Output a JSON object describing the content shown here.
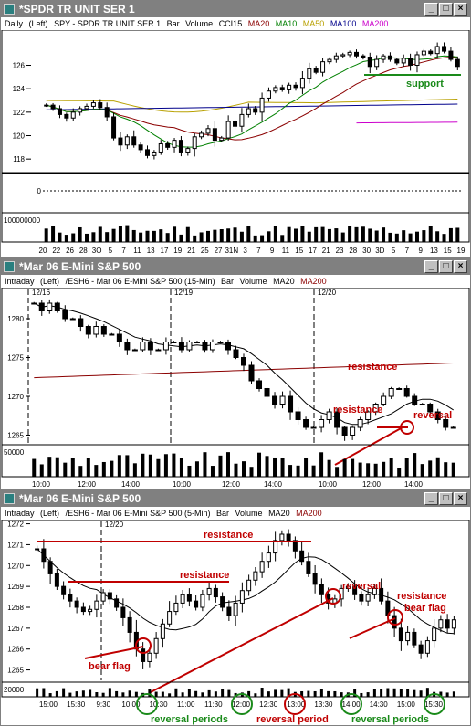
{
  "colors": {
    "up": "#ffffff",
    "down": "#000000",
    "ma20": "#8b0000",
    "ma10": "#008000",
    "ma50": "#b8a000",
    "ma100": "#00008b",
    "ma200": "#cc00cc",
    "annotation": "#c00000",
    "green_annotation": "#1a8a1a"
  },
  "windows": [
    {
      "title": "*SPDR TR UNIT SER 1",
      "legend": {
        "period": "Daily",
        "side": "(Left)",
        "symbol": "SPY - SPDR TR UNIT SER 1",
        "bar": "Bar",
        "volume": "Volume",
        "cci": "CCI15",
        "ma20": "MA20",
        "ma10": "MA10",
        "ma50": "MA50",
        "ma100": "MA100",
        "ma200": "MA200"
      },
      "price_ticks": [
        "126",
        "124",
        "122",
        "120",
        "118"
      ],
      "cci_ticks": [
        "0"
      ],
      "volume_ticks": [
        "100000000"
      ],
      "x_ticks": [
        "20",
        "22",
        "26",
        "28",
        "3O",
        "5",
        "7",
        "11",
        "13",
        "17",
        "19",
        "21",
        "25",
        "27",
        "31N",
        "3",
        "7",
        "9",
        "11",
        "15",
        "17",
        "21",
        "23",
        "28",
        "30",
        "3D",
        "5",
        "7",
        "9",
        "13",
        "15",
        "19"
      ],
      "annotations": {
        "support": "support"
      }
    },
    {
      "title": "*Mar 06 E-Mini S&P 500",
      "legend": {
        "period": "Intraday",
        "side": "(Left)",
        "symbol": "/ESH6 - Mar 06 E-Mini S&P 500 (15-Min)",
        "bar": "Bar",
        "volume": "Volume",
        "ma20": "MA20",
        "ma200": "MA200"
      },
      "price_ticks": [
        "1280",
        "1275",
        "1270",
        "1265"
      ],
      "volume_ticks": [
        "50000"
      ],
      "date_markers": [
        "12/16",
        "12/19",
        "12/20"
      ],
      "x_ticks": [
        "10:00",
        "12:00",
        "14:00",
        "10:00",
        "12:00",
        "14:00",
        "10:00",
        "12:00",
        "14:00"
      ],
      "annotations": {
        "resistance_upper": "resistance",
        "resistance_lower": "resistance",
        "reversal": "reversal"
      }
    },
    {
      "title": "*Mar 06 E-Mini S&P 500",
      "legend": {
        "period": "Intraday",
        "side": "(Left)",
        "symbol": "/ESH6 - Mar 06 E-Mini S&P 500 (5-Min)",
        "bar": "Bar",
        "volume": "Volume",
        "ma20": "MA20",
        "ma200": "MA200"
      },
      "price_ticks": [
        "1272",
        "1271",
        "1270",
        "1269",
        "1268",
        "1267",
        "1266",
        "1265"
      ],
      "volume_ticks": [
        "20000"
      ],
      "date_markers": [
        "12/20"
      ],
      "x_ticks": [
        "15:00",
        "15:30",
        "9:30",
        "10:00",
        "10:30",
        "11:00",
        "11:30",
        "12:00",
        "12:30",
        "13:00",
        "13:30",
        "14:00",
        "14:30",
        "15:00",
        "15:30"
      ],
      "annotations": {
        "resistance_top": "resistance",
        "resistance_mid": "resistance",
        "resistance_right": "resistance",
        "reversal": "reversal",
        "bear_flag_left": "bear flag",
        "bear_flag_right": "bear flag",
        "reversal_periods_left": "reversal periods",
        "reversal_period_mid": "reversal period",
        "reversal_periods_right": "reversal periods"
      }
    }
  ],
  "chart_data": [
    {
      "type": "bar",
      "title": "SPY - SPDR TR UNIT SER 1 (Daily)",
      "ylim": [
        117,
        129
      ],
      "series": [
        {
          "name": "SPY",
          "values": [
            122.6,
            122.3,
            121.8,
            121.5,
            122.0,
            122.3,
            122.5,
            122.8,
            122.4,
            121.6,
            119.8,
            119.2,
            119.9,
            119.2,
            118.8,
            118.3,
            118.6,
            119.3,
            119.0,
            119.6,
            118.6,
            118.9,
            119.9,
            120.2,
            120.6,
            119.6,
            119.8,
            121.2,
            120.8,
            121.8,
            122.3,
            122.0,
            123.2,
            123.8,
            124.1,
            123.9,
            124.3,
            124.1,
            124.9,
            125.7,
            125.4,
            126.3,
            126.5,
            126.8,
            126.9,
            127.1,
            126.8,
            126.7,
            125.9,
            126.5,
            126.8,
            126.5,
            126.2,
            126.6,
            126.0,
            126.9,
            127.2,
            127.0,
            127.6,
            127.2,
            126.5,
            125.9
          ]
        }
      ],
      "indicators": [
        "MA20",
        "MA10",
        "MA50",
        "MA100",
        "MA200",
        "CCI15",
        "Volume"
      ]
    },
    {
      "type": "bar",
      "title": "/ESH6 - Mar 06 E-Mini S&P 500 (15-Min)",
      "ylim": [
        1264,
        1284
      ],
      "series": [
        {
          "name": "/ESH6",
          "values": [
            1282,
            1281,
            1282,
            1281,
            1280,
            1280,
            1279,
            1278,
            1279,
            1278,
            1278,
            1277,
            1276,
            1276,
            1277,
            1276,
            1276,
            1277,
            1277,
            1276,
            1277,
            1277,
            1276,
            1277,
            1277,
            1276,
            1275,
            1274,
            1272,
            1271,
            1270,
            1269,
            1270,
            1268,
            1267,
            1266,
            1266,
            1267,
            1268,
            1266,
            1265,
            1266,
            1267,
            1268,
            1269,
            1270,
            1271,
            1271,
            1270,
            1269,
            1269,
            1268,
            1267,
            1266,
            1266
          ]
        }
      ]
    },
    {
      "type": "bar",
      "title": "/ESH6 - Mar 06 E-Mini S&P 500 (5-Min)",
      "ylim": [
        1264.5,
        1272.2
      ],
      "series": [
        {
          "name": "/ESH6",
          "values": [
            1270.8,
            1270.2,
            1269.6,
            1269.0,
            1268.6,
            1268.3,
            1268.0,
            1267.8,
            1267.9,
            1268.3,
            1268.7,
            1268.4,
            1268.0,
            1267.5,
            1266.8,
            1266.0,
            1265.4,
            1265.8,
            1266.5,
            1267.2,
            1267.8,
            1268.2,
            1268.6,
            1268.3,
            1268.0,
            1268.6,
            1268.9,
            1268.5,
            1268.0,
            1267.6,
            1268.2,
            1268.8,
            1269.3,
            1269.7,
            1270.2,
            1270.6,
            1271.2,
            1271.5,
            1271.2,
            1270.7,
            1270.2,
            1269.6,
            1269.1,
            1268.6,
            1268.2,
            1268.4,
            1268.9,
            1269.0,
            1268.6,
            1268.3,
            1268.6,
            1268.9,
            1268.3,
            1267.6,
            1267.0,
            1266.4,
            1266.8,
            1266.2,
            1265.8,
            1266.4,
            1267.0,
            1267.4,
            1267.0,
            1267.4
          ]
        }
      ]
    }
  ]
}
